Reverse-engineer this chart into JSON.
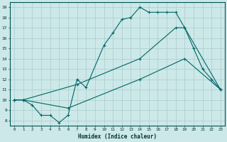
{
  "xlabel": "Humidex (Indice chaleur)",
  "bg_color": "#cce8e8",
  "line_color": "#006666",
  "grid_color": "#aacccc",
  "xlim": [
    -0.5,
    23.5
  ],
  "ylim": [
    7.5,
    19.5
  ],
  "xticks": [
    0,
    1,
    2,
    3,
    4,
    5,
    6,
    7,
    8,
    9,
    10,
    11,
    12,
    13,
    14,
    15,
    16,
    17,
    18,
    19,
    20,
    21,
    22,
    23
  ],
  "yticks": [
    8,
    9,
    10,
    11,
    12,
    13,
    14,
    15,
    16,
    17,
    18,
    19
  ],
  "line1_x": [
    0,
    1,
    2,
    3,
    4,
    5,
    6,
    7,
    8,
    10,
    11,
    12,
    13,
    14,
    15,
    16,
    17,
    18,
    19,
    20,
    21,
    22,
    23
  ],
  "line1_y": [
    10,
    10,
    9.5,
    8.5,
    8.5,
    7.8,
    8.5,
    12,
    11.2,
    15.3,
    16.5,
    17.8,
    18,
    19,
    18.5,
    18.5,
    18.5,
    18.5,
    17,
    15,
    13,
    12,
    11
  ],
  "line2_x": [
    0,
    1,
    7,
    14,
    18,
    19,
    23
  ],
  "line2_y": [
    10,
    10,
    11.5,
    14,
    17,
    17,
    11
  ],
  "line3_x": [
    0,
    1,
    6,
    14,
    19,
    23
  ],
  "line3_y": [
    10,
    10,
    9.2,
    12,
    14,
    11
  ]
}
